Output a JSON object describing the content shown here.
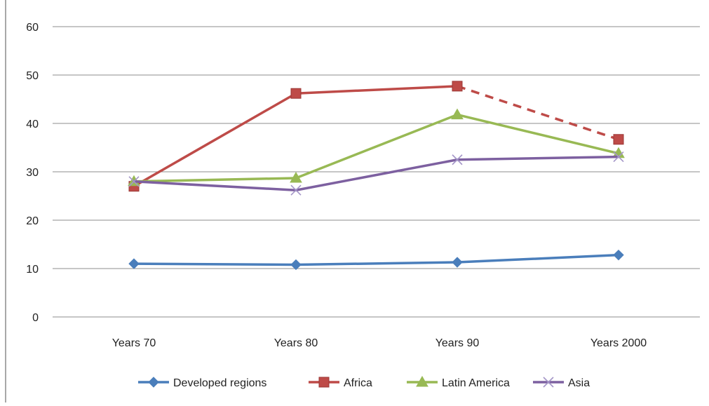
{
  "chart_data": {
    "type": "line",
    "title": "",
    "xlabel": "",
    "ylabel": "",
    "categories": [
      "Years 70",
      "Years 80",
      "Years 90",
      "Years 2000"
    ],
    "ylim": [
      0,
      60
    ],
    "yticks": [
      0,
      10,
      20,
      30,
      40,
      50,
      60
    ],
    "grid": "horizontal",
    "legend_position": "bottom",
    "series": [
      {
        "name": "Developed regions",
        "values": [
          11,
          10.8,
          11.3,
          12.8
        ],
        "color": "#4a7ebb",
        "marker": "diamond",
        "dashed_last_segment": false
      },
      {
        "name": "Africa",
        "values": [
          27,
          46.2,
          47.7,
          36.7
        ],
        "color": "#be4b48",
        "marker": "square",
        "dashed_last_segment": true
      },
      {
        "name": "Latin America",
        "values": [
          28,
          28.7,
          41.8,
          33.8
        ],
        "color": "#98b954",
        "marker": "triangle",
        "dashed_last_segment": false
      },
      {
        "name": "Asia",
        "values": [
          28,
          26.2,
          32.5,
          33.1
        ],
        "color": "#7d60a0",
        "marker": "x",
        "dashed_last_segment": false
      }
    ]
  }
}
